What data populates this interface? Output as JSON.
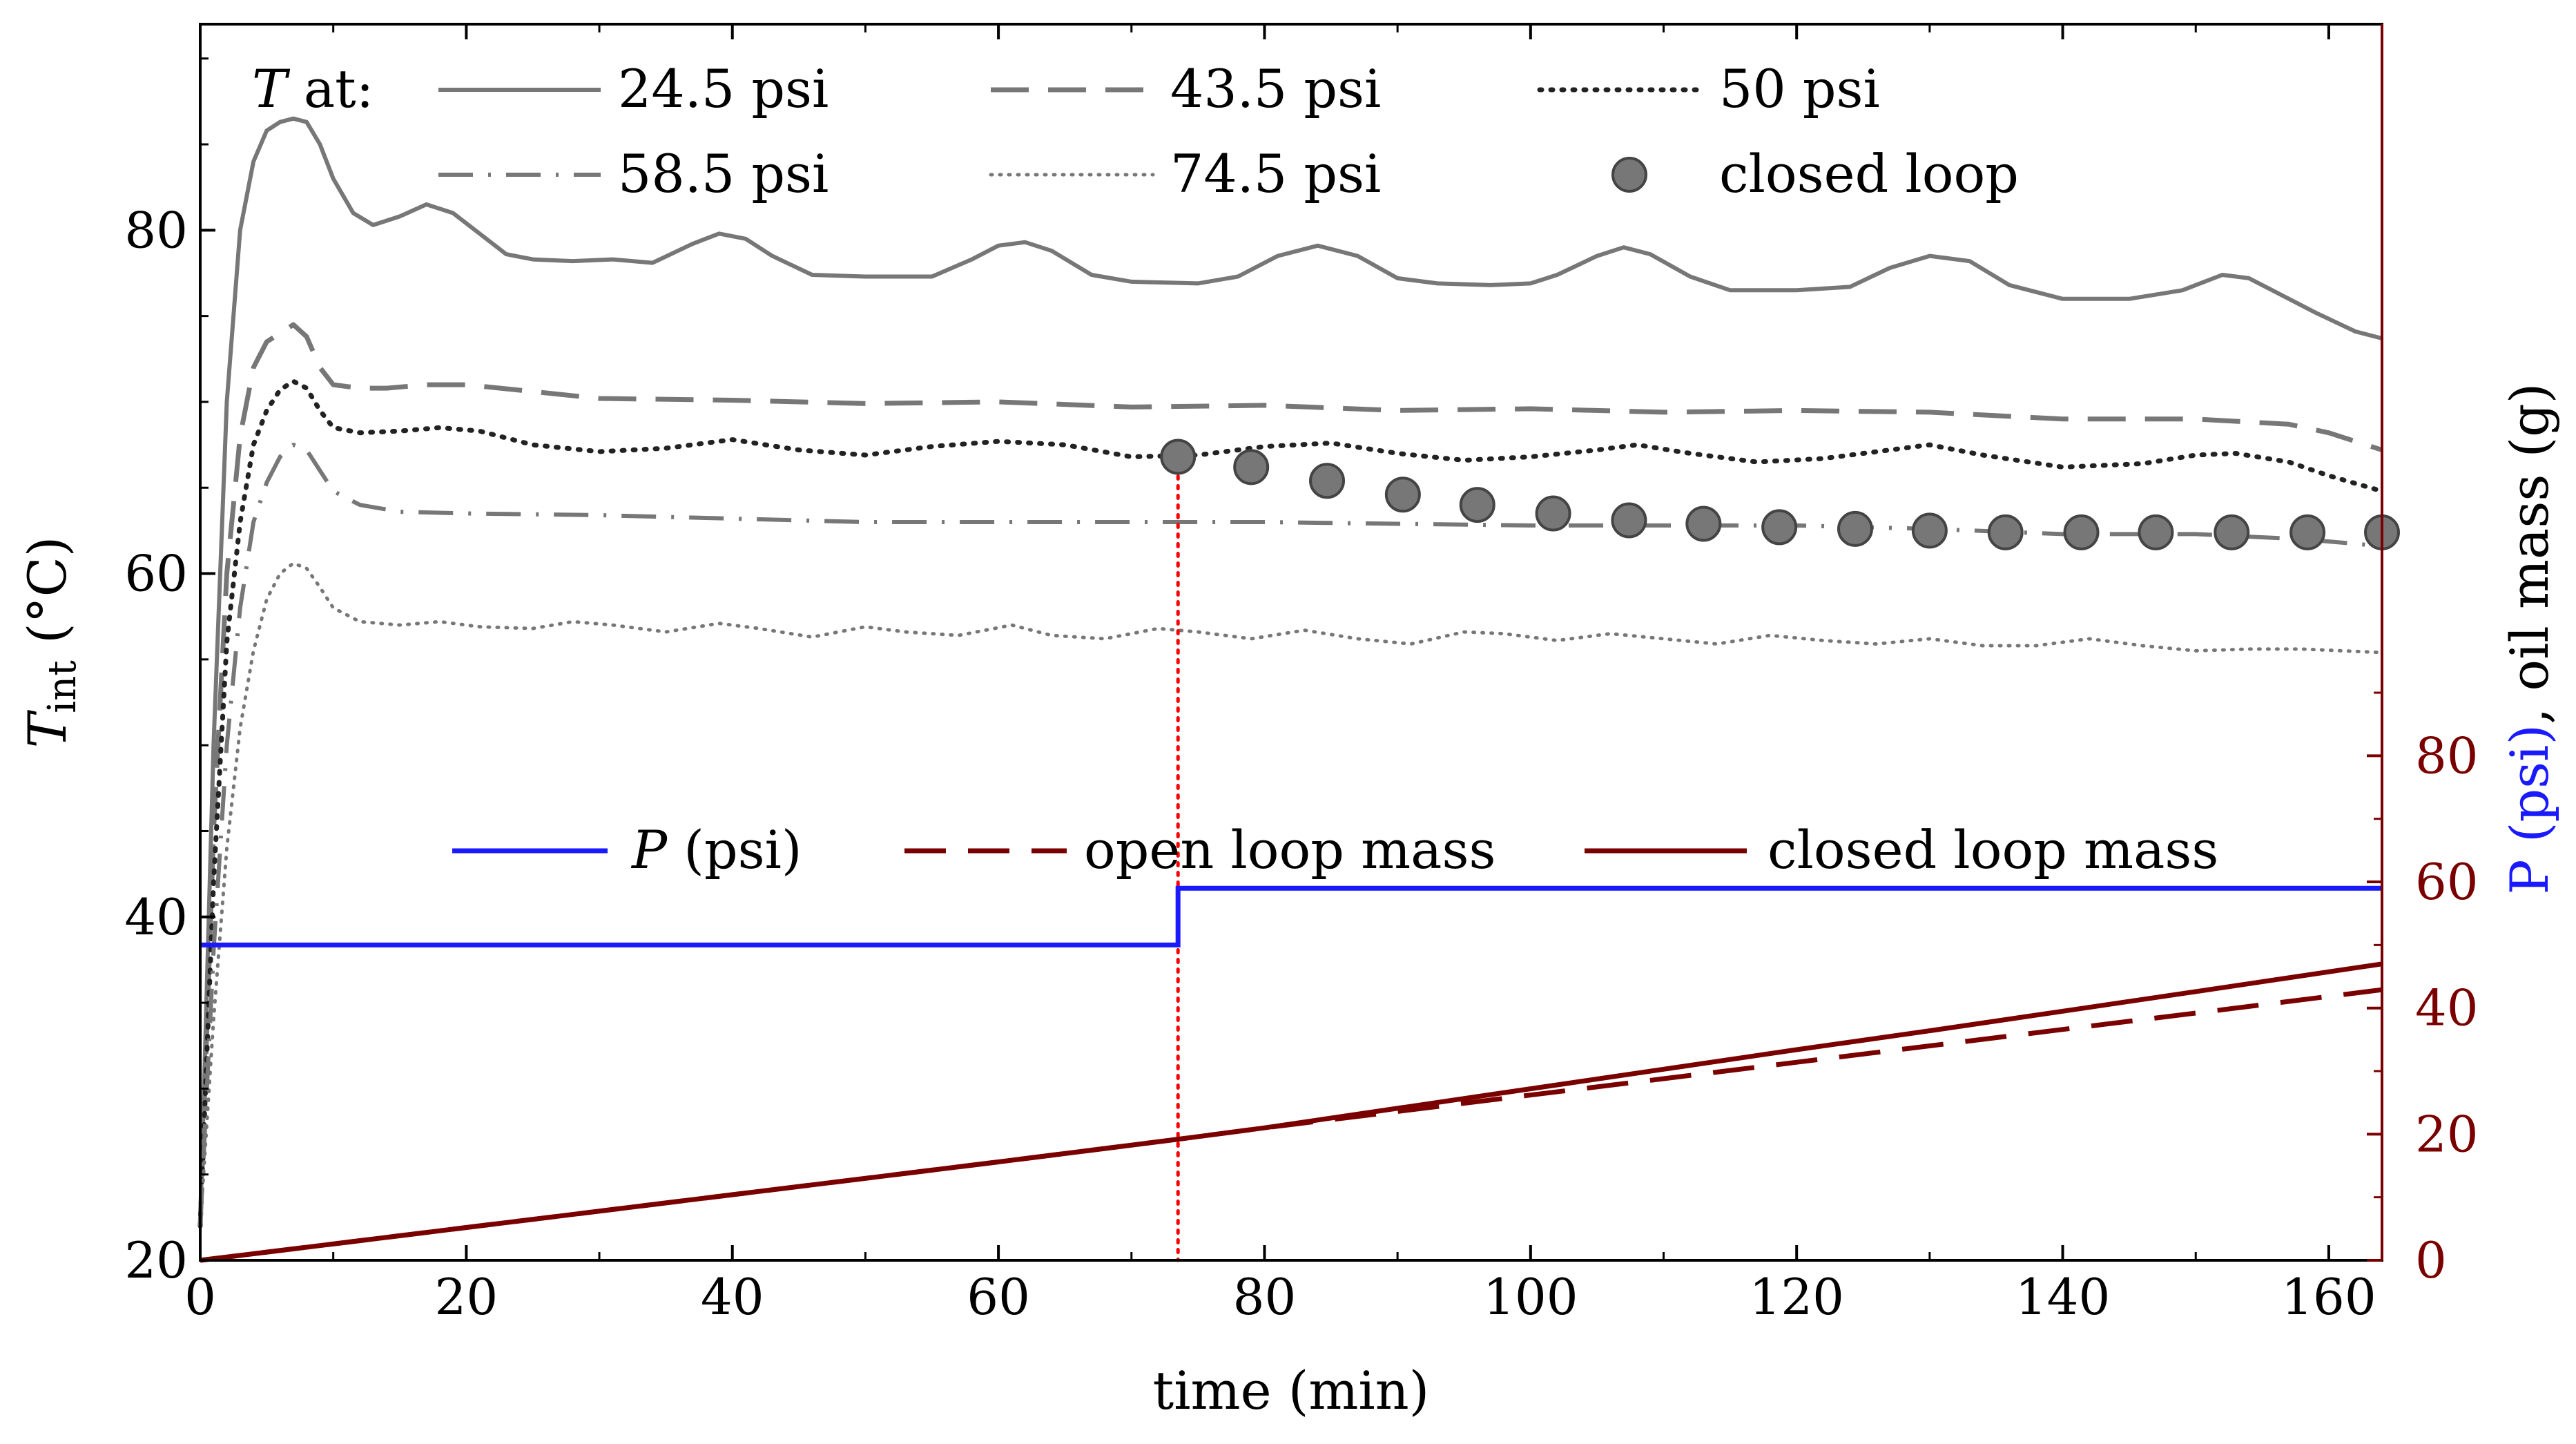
{
  "chart_data": {
    "type": "line",
    "xlabel": "time (min)",
    "ylabel_left": {
      "main": "T",
      "sub": "int",
      "unit": " (°C)"
    },
    "ylabel_right": {
      "p": "P (psi)",
      "rest": ", oil mass (g)"
    },
    "xlim": [
      0,
      164
    ],
    "ylim_left": [
      20,
      92
    ],
    "ylim_right": [
      0,
      196
    ],
    "xticks": [
      0,
      20,
      40,
      60,
      80,
      100,
      120,
      140,
      160
    ],
    "yticks_left": [
      20,
      40,
      60,
      80
    ],
    "yticks_right": [
      0,
      20,
      40,
      60,
      80
    ],
    "legend_top": {
      "prefix_symbol": "T",
      "prefix_text": " at:",
      "entries": [
        "24.5 psi",
        "43.5 psi",
        "50 psi",
        "58.5 psi",
        "74.5 psi",
        "closed loop"
      ]
    },
    "legend_bottom": {
      "entries": [
        {
          "symbol": "P",
          "text": " (psi)"
        },
        {
          "symbol": "",
          "text": "open loop mass"
        },
        {
          "symbol": "",
          "text": "closed loop mass"
        }
      ]
    },
    "colors": {
      "gray": "#777777",
      "black": "#222222",
      "blue": "#1a1aff",
      "darkred": "#7a0000",
      "red": "#ff0000",
      "marker_fill": "#777777",
      "marker_edge": "#444444"
    },
    "switch_time": 73.5,
    "temperature_series": [
      {
        "name": "24.5 psi",
        "style": "solid",
        "points": [
          [
            0,
            22
          ],
          [
            1,
            50
          ],
          [
            2,
            70
          ],
          [
            3,
            80
          ],
          [
            4,
            84
          ],
          [
            5,
            85.8
          ],
          [
            6,
            86.3
          ],
          [
            7,
            86.5
          ],
          [
            8,
            86.3
          ],
          [
            9,
            85
          ],
          [
            10,
            83
          ],
          [
            11.5,
            81
          ],
          [
            13,
            80.3
          ],
          [
            15,
            80.8
          ],
          [
            17,
            81.5
          ],
          [
            19,
            81
          ],
          [
            21,
            79.8
          ],
          [
            23,
            78.6
          ],
          [
            25,
            78.3
          ],
          [
            28,
            78.2
          ],
          [
            31,
            78.3
          ],
          [
            34,
            78.1
          ],
          [
            37,
            79.2
          ],
          [
            39,
            79.8
          ],
          [
            41,
            79.5
          ],
          [
            43,
            78.5
          ],
          [
            46,
            77.4
          ],
          [
            50,
            77.3
          ],
          [
            55,
            77.3
          ],
          [
            58,
            78.3
          ],
          [
            60,
            79.1
          ],
          [
            62,
            79.3
          ],
          [
            64,
            78.8
          ],
          [
            67,
            77.4
          ],
          [
            70,
            77
          ],
          [
            75,
            76.9
          ],
          [
            78,
            77.3
          ],
          [
            81,
            78.5
          ],
          [
            84,
            79.1
          ],
          [
            87,
            78.5
          ],
          [
            90,
            77.2
          ],
          [
            93,
            76.9
          ],
          [
            97,
            76.8
          ],
          [
            100,
            76.9
          ],
          [
            102,
            77.4
          ],
          [
            105,
            78.5
          ],
          [
            107,
            79
          ],
          [
            109,
            78.6
          ],
          [
            112,
            77.3
          ],
          [
            115,
            76.5
          ],
          [
            120,
            76.5
          ],
          [
            124,
            76.7
          ],
          [
            127,
            77.8
          ],
          [
            130,
            78.5
          ],
          [
            133,
            78.2
          ],
          [
            136,
            76.8
          ],
          [
            140,
            76
          ],
          [
            145,
            76
          ],
          [
            149,
            76.5
          ],
          [
            152,
            77.4
          ],
          [
            154,
            77.2
          ],
          [
            156,
            76.4
          ],
          [
            159,
            75.2
          ],
          [
            162,
            74.1
          ],
          [
            164,
            73.7
          ]
        ]
      },
      {
        "name": "43.5 psi",
        "style": "dash",
        "points": [
          [
            0,
            22
          ],
          [
            1,
            45
          ],
          [
            2,
            60
          ],
          [
            3,
            68
          ],
          [
            4,
            72
          ],
          [
            5,
            73.5
          ],
          [
            6,
            74
          ],
          [
            7,
            74.5
          ],
          [
            8,
            73.8
          ],
          [
            9,
            72
          ],
          [
            10,
            71
          ],
          [
            12,
            70.8
          ],
          [
            14,
            70.8
          ],
          [
            17,
            71
          ],
          [
            20,
            71
          ],
          [
            25,
            70.6
          ],
          [
            30,
            70.2
          ],
          [
            40,
            70.1
          ],
          [
            50,
            69.9
          ],
          [
            60,
            70
          ],
          [
            70,
            69.7
          ],
          [
            80,
            69.8
          ],
          [
            90,
            69.5
          ],
          [
            100,
            69.6
          ],
          [
            110,
            69.4
          ],
          [
            120,
            69.5
          ],
          [
            130,
            69.4
          ],
          [
            140,
            69
          ],
          [
            150,
            69
          ],
          [
            157,
            68.7
          ],
          [
            160,
            68.2
          ],
          [
            164,
            67.2
          ]
        ]
      },
      {
        "name": "50 psi",
        "style": "dot",
        "points": [
          [
            0,
            22
          ],
          [
            1,
            42
          ],
          [
            2,
            56
          ],
          [
            3,
            63
          ],
          [
            4,
            67.5
          ],
          [
            5,
            69.5
          ],
          [
            6,
            70.7
          ],
          [
            7,
            71.2
          ],
          [
            8,
            70.8
          ],
          [
            9,
            69.5
          ],
          [
            10,
            68.5
          ],
          [
            12,
            68.2
          ],
          [
            15,
            68.3
          ],
          [
            18,
            68.5
          ],
          [
            21,
            68.3
          ],
          [
            25,
            67.5
          ],
          [
            30,
            67.1
          ],
          [
            35,
            67.3
          ],
          [
            40,
            67.8
          ],
          [
            45,
            67.2
          ],
          [
            50,
            66.9
          ],
          [
            55,
            67.4
          ],
          [
            60,
            67.7
          ],
          [
            65,
            67.5
          ],
          [
            70,
            66.8
          ],
          [
            75,
            66.9
          ],
          [
            80,
            67.4
          ],
          [
            85,
            67.6
          ],
          [
            90,
            67
          ],
          [
            95,
            66.6
          ],
          [
            100,
            66.8
          ],
          [
            105,
            67.2
          ],
          [
            108,
            67.5
          ],
          [
            112,
            67
          ],
          [
            117,
            66.5
          ],
          [
            122,
            66.7
          ],
          [
            127,
            67.2
          ],
          [
            130,
            67.5
          ],
          [
            134,
            66.9
          ],
          [
            140,
            66.2
          ],
          [
            146,
            66.4
          ],
          [
            150,
            66.9
          ],
          [
            153,
            67
          ],
          [
            157,
            66.5
          ],
          [
            160,
            65.7
          ],
          [
            164,
            64.8
          ]
        ]
      },
      {
        "name": "58.5 psi",
        "style": "dashdot",
        "points": [
          [
            0,
            22
          ],
          [
            1,
            38
          ],
          [
            2,
            50
          ],
          [
            3,
            58
          ],
          [
            4,
            63
          ],
          [
            5,
            65.3
          ],
          [
            6,
            66.8
          ],
          [
            7,
            67.5
          ],
          [
            8,
            67.2
          ],
          [
            9,
            66
          ],
          [
            10,
            64.8
          ],
          [
            12,
            64
          ],
          [
            15,
            63.6
          ],
          [
            20,
            63.5
          ],
          [
            30,
            63.4
          ],
          [
            40,
            63.2
          ],
          [
            50,
            63
          ],
          [
            60,
            63
          ],
          [
            70,
            63
          ],
          [
            80,
            63
          ],
          [
            90,
            62.9
          ],
          [
            100,
            62.8
          ],
          [
            110,
            62.8
          ],
          [
            120,
            62.8
          ],
          [
            130,
            62.6
          ],
          [
            140,
            62.3
          ],
          [
            150,
            62.3
          ],
          [
            158,
            62
          ],
          [
            164,
            61.6
          ]
        ]
      },
      {
        "name": "74.5 psi",
        "style": "finedot",
        "points": [
          [
            0,
            22
          ],
          [
            1,
            34
          ],
          [
            2,
            44
          ],
          [
            3,
            51
          ],
          [
            4,
            55.5
          ],
          [
            5,
            58.5
          ],
          [
            6,
            60
          ],
          [
            7,
            60.6
          ],
          [
            8,
            60.3
          ],
          [
            9,
            59.2
          ],
          [
            10,
            58
          ],
          [
            12,
            57.2
          ],
          [
            15,
            57
          ],
          [
            18,
            57.2
          ],
          [
            21,
            56.9
          ],
          [
            25,
            56.8
          ],
          [
            28,
            57.2
          ],
          [
            31,
            57
          ],
          [
            35,
            56.6
          ],
          [
            39,
            57.1
          ],
          [
            42,
            56.8
          ],
          [
            46,
            56.3
          ],
          [
            50,
            56.9
          ],
          [
            53,
            56.6
          ],
          [
            57,
            56.4
          ],
          [
            61,
            57
          ],
          [
            64,
            56.4
          ],
          [
            68,
            56.2
          ],
          [
            72,
            56.8
          ],
          [
            75,
            56.6
          ],
          [
            79,
            56.2
          ],
          [
            83,
            56.7
          ],
          [
            87,
            56.2
          ],
          [
            91,
            55.9
          ],
          [
            95,
            56.6
          ],
          [
            98,
            56.5
          ],
          [
            102,
            56.1
          ],
          [
            106,
            56.5
          ],
          [
            110,
            56.2
          ],
          [
            114,
            55.9
          ],
          [
            118,
            56.4
          ],
          [
            122,
            56.1
          ],
          [
            126,
            55.9
          ],
          [
            130,
            56.2
          ],
          [
            134,
            55.8
          ],
          [
            138,
            55.8
          ],
          [
            142,
            56.2
          ],
          [
            146,
            55.8
          ],
          [
            150,
            55.5
          ],
          [
            154,
            55.6
          ],
          [
            158,
            55.6
          ],
          [
            164,
            55.4
          ]
        ]
      }
    ],
    "closed_loop_points": [
      [
        73.5,
        66.8
      ],
      [
        79,
        66.2
      ],
      [
        84.7,
        65.4
      ],
      [
        90.4,
        64.6
      ],
      [
        96,
        64
      ],
      [
        101.7,
        63.5
      ],
      [
        107.4,
        63.1
      ],
      [
        113,
        62.9
      ],
      [
        118.7,
        62.7
      ],
      [
        124.4,
        62.6
      ],
      [
        130,
        62.5
      ],
      [
        135.7,
        62.4
      ],
      [
        141.4,
        62.4
      ],
      [
        147,
        62.4
      ],
      [
        152.7,
        62.4
      ],
      [
        158.4,
        62.4
      ],
      [
        164,
        62.4
      ]
    ],
    "pressure_series": {
      "name": "P (psi)",
      "points": [
        [
          0,
          50
        ],
        [
          73.5,
          50
        ],
        [
          73.5,
          59
        ],
        [
          164,
          59
        ]
      ]
    },
    "open_loop_mass": {
      "name": "open loop mass",
      "points": [
        [
          0,
          0
        ],
        [
          10,
          2.6
        ],
        [
          20,
          5.2
        ],
        [
          30,
          7.8
        ],
        [
          40,
          10.4
        ],
        [
          50,
          13
        ],
        [
          60,
          15.6
        ],
        [
          73.5,
          19.2
        ],
        [
          80,
          21
        ],
        [
          90,
          23.6
        ],
        [
          100,
          26.2
        ],
        [
          110,
          28.8
        ],
        [
          120,
          31.4
        ],
        [
          130,
          34
        ],
        [
          140,
          36.6
        ],
        [
          150,
          39.2
        ],
        [
          164,
          42.9
        ]
      ]
    },
    "closed_loop_mass": {
      "name": "closed loop mass",
      "points": [
        [
          0,
          0
        ],
        [
          10,
          2.6
        ],
        [
          20,
          5.2
        ],
        [
          30,
          7.8
        ],
        [
          40,
          10.4
        ],
        [
          50,
          13
        ],
        [
          60,
          15.6
        ],
        [
          73.5,
          19.2
        ],
        [
          80,
          21
        ],
        [
          90,
          24.1
        ],
        [
          100,
          27.2
        ],
        [
          110,
          30.3
        ],
        [
          120,
          33.4
        ],
        [
          130,
          36.4
        ],
        [
          140,
          39.5
        ],
        [
          150,
          42.6
        ],
        [
          164,
          47
        ]
      ]
    }
  }
}
